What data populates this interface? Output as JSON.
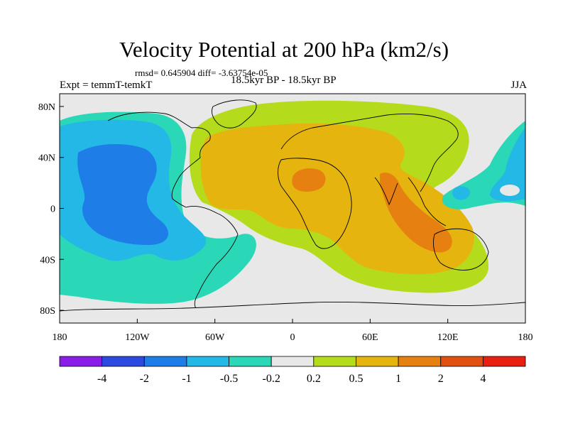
{
  "chart_data": {
    "type": "heatmap",
    "title": "Velocity Potential at 200 hPa (km2/s)",
    "stats_text": "rmsd= 0.645904 diff= -3.63754e-05",
    "left_label": "Expt = temmT-temkT",
    "center_label": "18.5kyr BP - 18.5kyr BP",
    "right_label": "JJA",
    "xlabel": "",
    "ylabel": "",
    "x_ticks": [
      {
        "label": "180",
        "lon": -180
      },
      {
        "label": "120W",
        "lon": -120
      },
      {
        "label": "60W",
        "lon": -60
      },
      {
        "label": "0",
        "lon": 0
      },
      {
        "label": "60E",
        "lon": 60
      },
      {
        "label": "120E",
        "lon": 120
      },
      {
        "label": "180",
        "lon": 180
      }
    ],
    "y_ticks": [
      {
        "label": "80N",
        "lat": 80
      },
      {
        "label": "40N",
        "lat": 40
      },
      {
        "label": "0",
        "lat": 0
      },
      {
        "label": "40S",
        "lat": -40
      },
      {
        "label": "80S",
        "lat": -80
      }
    ],
    "xlim": [
      -180,
      180
    ],
    "ylim": [
      -90,
      90
    ],
    "colorbar": {
      "levels": [
        "-4",
        "-2",
        "-1",
        "-0.5",
        "-0.2",
        "0.2",
        "0.5",
        "1",
        "2",
        "4"
      ],
      "colors": [
        "#8a1ee8",
        "#2d4ae0",
        "#1e7de6",
        "#23b8e6",
        "#2ad8b8",
        "#e8e8e8",
        "#b4dc1c",
        "#e6b40e",
        "#e68010",
        "#e05010",
        "#e82010"
      ]
    },
    "regions": [
      {
        "name": "central-north-pacific-minimum",
        "level": "-1 to -2",
        "lon": -150,
        "lat": 10
      },
      {
        "name": "east-pacific-negative",
        "level": "-0.2 to -1",
        "lon": -110,
        "lat": -10
      },
      {
        "name": "west-pacific-negative",
        "level": "-0.2 to -1",
        "lon": 160,
        "lat": 25
      },
      {
        "name": "north-africa-maximum",
        "level": "1 to 2",
        "lon": 10,
        "lat": 25
      },
      {
        "name": "indian-ocean-maximum",
        "level": "1 to 2",
        "lon": 95,
        "lat": -10
      },
      {
        "name": "eurasia-positive",
        "level": "0.2 to 1",
        "lon": 50,
        "lat": 30
      }
    ]
  }
}
